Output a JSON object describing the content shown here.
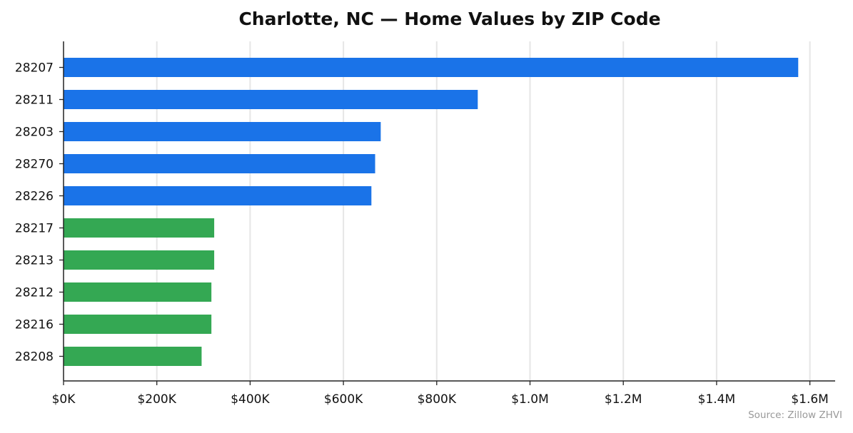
{
  "chart_data": {
    "type": "bar",
    "orientation": "horizontal",
    "title": "Charlotte, NC — Home Values by ZIP Code",
    "xlabel": "",
    "ylabel": "",
    "source": "Source: Zillow ZHVI",
    "categories": [
      "28207",
      "28211",
      "28203",
      "28270",
      "28226",
      "28217",
      "28213",
      "28212",
      "28216",
      "28208"
    ],
    "values": [
      1575000,
      888000,
      680000,
      668000,
      660000,
      323000,
      323000,
      317000,
      317000,
      296000
    ],
    "bar_colors": [
      "#1a73e8",
      "#1a73e8",
      "#1a73e8",
      "#1a73e8",
      "#1a73e8",
      "#34a853",
      "#34a853",
      "#34a853",
      "#34a853",
      "#34a853"
    ],
    "xlim": [
      0,
      1660000
    ],
    "xticks": [
      0,
      200000,
      400000,
      600000,
      800000,
      1000000,
      1200000,
      1400000,
      1600000
    ],
    "xtick_labels": [
      "$0K",
      "$200K",
      "$400K",
      "$600K",
      "$800K",
      "$1.0M",
      "$1.2M",
      "$1.4M",
      "$1.6M"
    ],
    "grid": "x",
    "legend": "none"
  }
}
